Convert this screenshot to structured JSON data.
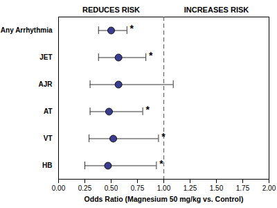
{
  "chart_data": {
    "type": "forest",
    "categories": [
      "Any Arrhythmia",
      "JET",
      "AJR",
      "AT",
      "VT",
      "HB"
    ],
    "values": [
      0.5,
      0.57,
      0.57,
      0.48,
      0.52,
      0.47
    ],
    "ci_lower": [
      0.38,
      0.38,
      0.3,
      0.3,
      0.29,
      0.25
    ],
    "ci_upper": [
      0.65,
      0.83,
      1.09,
      0.8,
      0.95,
      0.93
    ],
    "annotations": [
      "*",
      "*",
      null,
      "*",
      "*",
      "*"
    ],
    "reference_line": 1.0,
    "region_labels": [
      "REDUCES RISK",
      "INCREASES RISK"
    ],
    "xlabel": "Odds Ratio (Magnesium 50 mg/kg vs. Control)",
    "xlim": [
      0,
      2
    ],
    "xticks": [
      {
        "value": 0,
        "label": "0.00"
      },
      {
        "value": 0.25,
        "label": "0.25"
      },
      {
        "value": 0.5,
        "label": "0.50"
      },
      {
        "value": 0.75,
        "label": "0.75"
      },
      {
        "value": 1,
        "label": "1.00"
      },
      {
        "value": 1.25,
        "label": "1.25"
      },
      {
        "value": 1.5,
        "label": "1.50"
      },
      {
        "value": 1.75,
        "label": "1.75"
      },
      {
        "value": 2,
        "label": "2.00"
      }
    ],
    "color": "#3a3d8f",
    "grid": false
  }
}
